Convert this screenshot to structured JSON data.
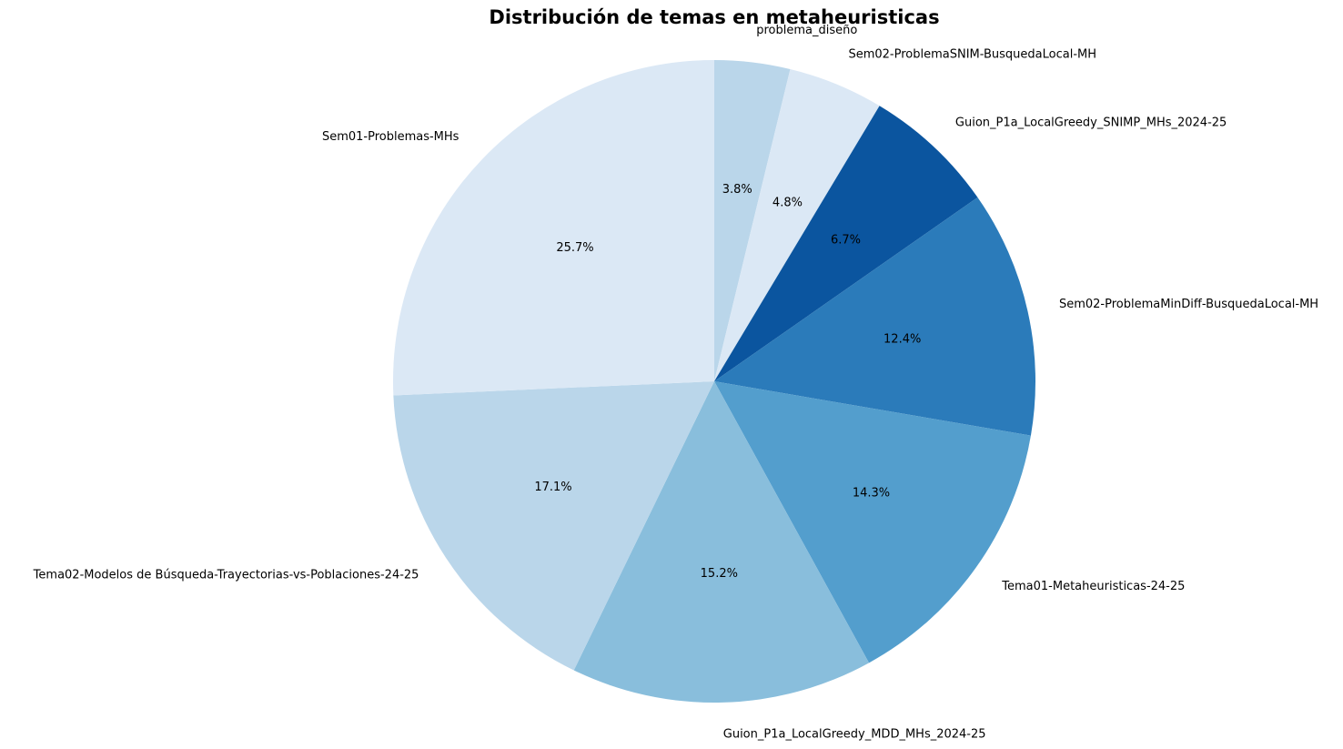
{
  "chart_data": {
    "type": "pie",
    "title": "Distribución de temas en metaheuristicas",
    "start_angle_deg": 90,
    "direction": "clockwise",
    "slices": [
      {
        "label": "problema_diseño",
        "percent_text": "3.8%",
        "value": 3.8,
        "color": "#bad6ea"
      },
      {
        "label": "Sem02-ProblemaSNIM-BusquedaLocal-MH",
        "percent_text": "4.8%",
        "value": 4.8,
        "color": "#dbe8f5"
      },
      {
        "label": "Guion_P1a_LocalGreedy_SNIMP_MHs_2024-25",
        "percent_text": "6.7%",
        "value": 6.7,
        "color": "#0b559f"
      },
      {
        "label": "Sem02-ProblemaMinDiff-BusquedaLocal-MH",
        "percent_text": "12.4%",
        "value": 12.4,
        "color": "#2b7bba"
      },
      {
        "label": "Tema01-Metaheuristicas-24-25",
        "percent_text": "14.3%",
        "value": 14.3,
        "color": "#539ecd"
      },
      {
        "label": "Guion_P1a_LocalGreedy_MDD_MHs_2024-25",
        "percent_text": "15.2%",
        "value": 15.2,
        "color": "#89bedc"
      },
      {
        "label": "Tema02-Modelos de Búsqueda-Trayectorias-vs-Poblaciones-24-25",
        "percent_text": "17.1%",
        "value": 17.1,
        "color": "#bad6ea"
      },
      {
        "label": "Sem01-Problemas-MHs",
        "percent_text": "25.7%",
        "value": 25.7,
        "color": "#dbe8f5"
      }
    ]
  }
}
